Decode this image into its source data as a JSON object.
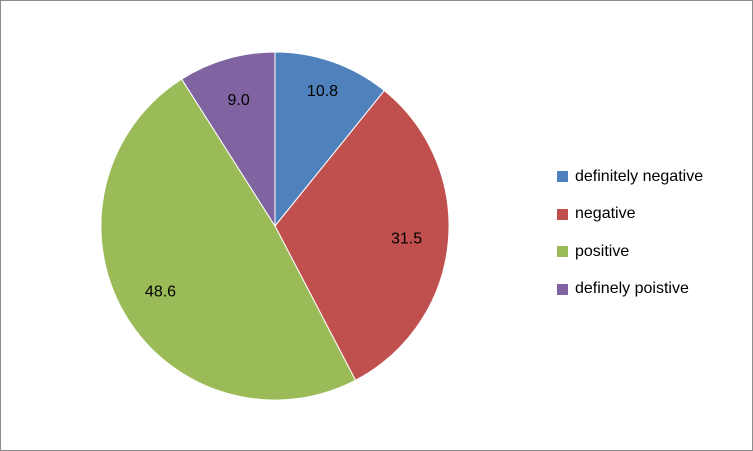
{
  "chart_data": {
    "type": "pie",
    "title": "",
    "categories": [
      "definitely negative",
      "negative",
      "positive",
      "definely poistive"
    ],
    "values": [
      10.8,
      31.5,
      48.6,
      9.0
    ],
    "value_labels": [
      "10.8",
      "31.5",
      "48.6",
      "9.0"
    ],
    "colors": [
      "#4f81bd",
      "#c0504d",
      "#9bbb59",
      "#8064a2"
    ],
    "start_angle": "12 o'clock",
    "direction": "clockwise",
    "legend_position": "right"
  }
}
